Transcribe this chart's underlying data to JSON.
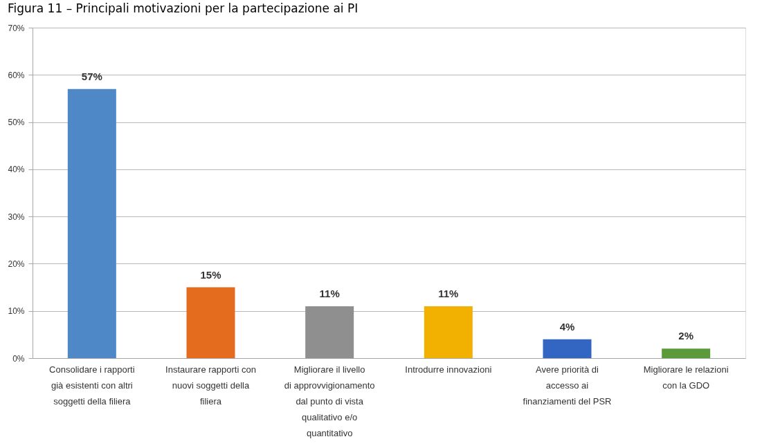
{
  "chart_data": {
    "type": "bar",
    "title": "Figura 11 – Principali motivazioni per la partecipazione ai PI",
    "categories": [
      "Consolidare i rapporti già esistenti con altri soggetti della filiera",
      "Instaurare rapporti con nuovi soggetti della filiera",
      "Migliorare il livello di approvvigionamento dal punto di vista qualitativo e/o quantitativo",
      "Introdurre innovazioni",
      "Avere priorità di accesso ai finanziamenti del PSR",
      "Migliorare le relazioni con la GDO"
    ],
    "values": [
      57,
      15,
      11,
      11,
      4,
      2
    ],
    "colors": [
      "#4f88c6",
      "#e46c1e",
      "#8f8f8f",
      "#f2b100",
      "#3366c2",
      "#5a9a3a"
    ],
    "value_labels": [
      "57%",
      "15%",
      "11%",
      "11%",
      "4%",
      "2%"
    ],
    "ylim": [
      0,
      70
    ],
    "yticks": [
      {
        "value": 0,
        "label": "0%"
      },
      {
        "value": 10,
        "label": "10%"
      },
      {
        "value": 20,
        "label": "20%"
      },
      {
        "value": 30,
        "label": "30%"
      },
      {
        "value": 40,
        "label": "40%"
      },
      {
        "value": 50,
        "label": "50%"
      },
      {
        "value": 60,
        "label": "60%"
      },
      {
        "value": 70,
        "label": "70%"
      }
    ],
    "grid": "y"
  }
}
